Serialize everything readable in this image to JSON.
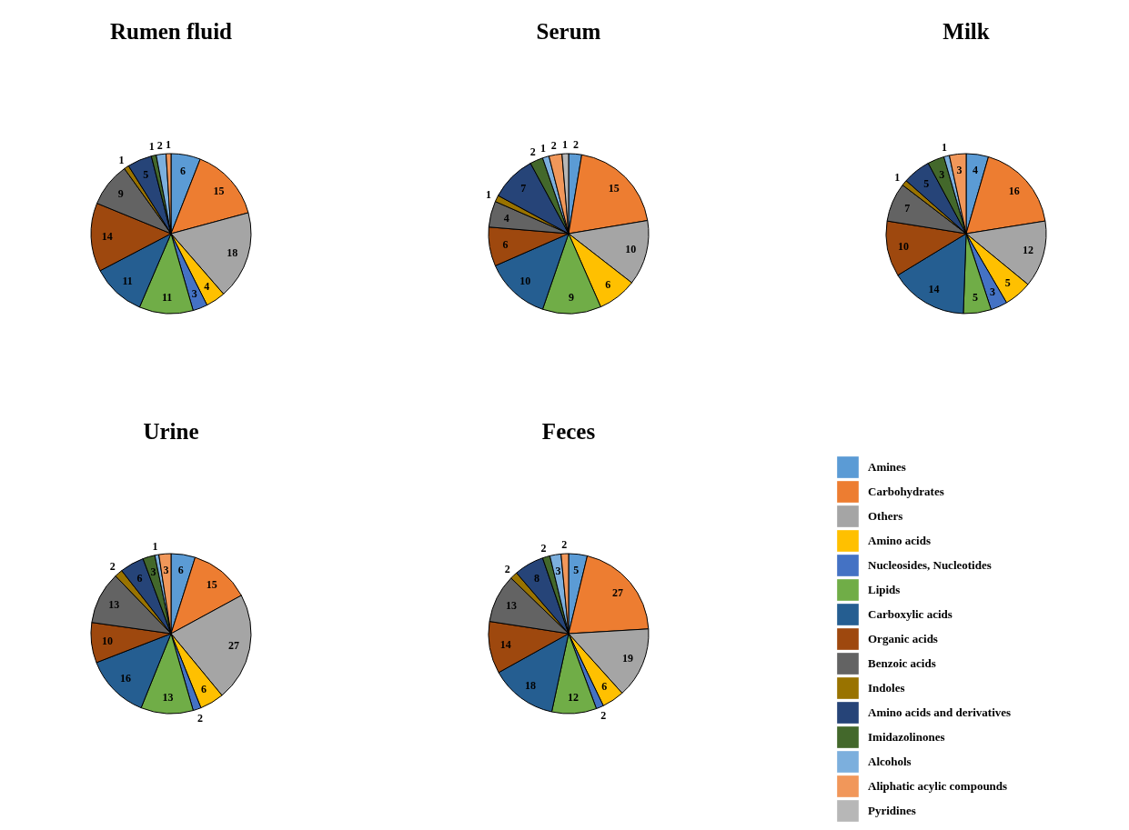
{
  "chart_data": [
    {
      "type": "pie",
      "title": "Rumen fluid",
      "data_labels": true,
      "categories": [
        null,
        null,
        null,
        null,
        null,
        null,
        null,
        null,
        null,
        null,
        null,
        null,
        null,
        null,
        null
      ],
      "values": [
        6,
        15,
        18,
        4,
        3,
        11,
        11,
        14,
        9,
        1,
        5,
        1,
        2,
        1,
        null
      ],
      "colors": [
        "#5b9bd5",
        "#ed7d31",
        "#a5a5a5",
        "#ffc000",
        "#4472c4",
        "#70ad47",
        "#255e91",
        "#9e480e",
        "#636363",
        "#997300",
        "#264478",
        "#43682b",
        "#7cafdd",
        "#f1975a",
        "#b7b7b7"
      ]
    },
    {
      "type": "pie",
      "title": "Serum",
      "data_labels": true,
      "categories": [
        null,
        null,
        null,
        null,
        null,
        null,
        null,
        null,
        null,
        null,
        null,
        null,
        null,
        null,
        null
      ],
      "values": [
        2,
        15,
        10,
        6,
        null,
        9,
        10,
        6,
        4,
        1,
        7,
        2,
        1,
        2,
        1
      ],
      "colors": [
        "#5b9bd5",
        "#ed7d31",
        "#a5a5a5",
        "#ffc000",
        "#4472c4",
        "#70ad47",
        "#255e91",
        "#9e480e",
        "#636363",
        "#997300",
        "#264478",
        "#43682b",
        "#7cafdd",
        "#f1975a",
        "#b7b7b7"
      ]
    },
    {
      "type": "pie",
      "title": "Milk",
      "data_labels": true,
      "categories": [
        null,
        null,
        null,
        null,
        null,
        null,
        null,
        null,
        null,
        null,
        null,
        null,
        null,
        null,
        null
      ],
      "values": [
        4,
        16,
        12,
        5,
        3,
        5,
        14,
        10,
        7,
        1,
        5,
        3,
        1,
        3,
        null
      ],
      "colors": [
        "#5b9bd5",
        "#ed7d31",
        "#a5a5a5",
        "#ffc000",
        "#4472c4",
        "#70ad47",
        "#255e91",
        "#9e480e",
        "#636363",
        "#997300",
        "#264478",
        "#43682b",
        "#7cafdd",
        "#f1975a",
        "#b7b7b7"
      ]
    },
    {
      "type": "pie",
      "title": "Urine",
      "data_labels": true,
      "categories": [
        null,
        null,
        null,
        null,
        null,
        null,
        null,
        null,
        null,
        null,
        null,
        null,
        null,
        null,
        null
      ],
      "values": [
        6,
        15,
        27,
        6,
        2,
        13,
        16,
        10,
        13,
        2,
        6,
        3,
        1,
        3,
        null
      ],
      "colors": [
        "#5b9bd5",
        "#ed7d31",
        "#a5a5a5",
        "#ffc000",
        "#4472c4",
        "#70ad47",
        "#255e91",
        "#9e480e",
        "#636363",
        "#997300",
        "#264478",
        "#43682b",
        "#7cafdd",
        "#f1975a",
        "#b7b7b7"
      ]
    },
    {
      "type": "pie",
      "title": "Feces",
      "data_labels": true,
      "legend": "right",
      "categories": [
        "Amines",
        "Carbohydrates",
        "Others",
        "Amino acids",
        "Nucleosides, Nucleotides",
        "Lipids",
        "Carboxylic acids",
        "Organic acids",
        "Benzoic acids",
        "Indoles",
        "Amino acids and derivatives",
        "Imidazolinones",
        "Alcohols",
        "Aliphatic acylic compounds",
        "Pyridines"
      ],
      "values": [
        5,
        27,
        19,
        6,
        2,
        12,
        18,
        14,
        13,
        2,
        8,
        2,
        3,
        2,
        null
      ],
      "colors": [
        "#5b9bd5",
        "#ed7d31",
        "#a5a5a5",
        "#ffc000",
        "#4472c4",
        "#70ad47",
        "#255e91",
        "#9e480e",
        "#636363",
        "#997300",
        "#264478",
        "#43682b",
        "#7cafdd",
        "#f1975a",
        "#b7b7b7"
      ]
    }
  ]
}
